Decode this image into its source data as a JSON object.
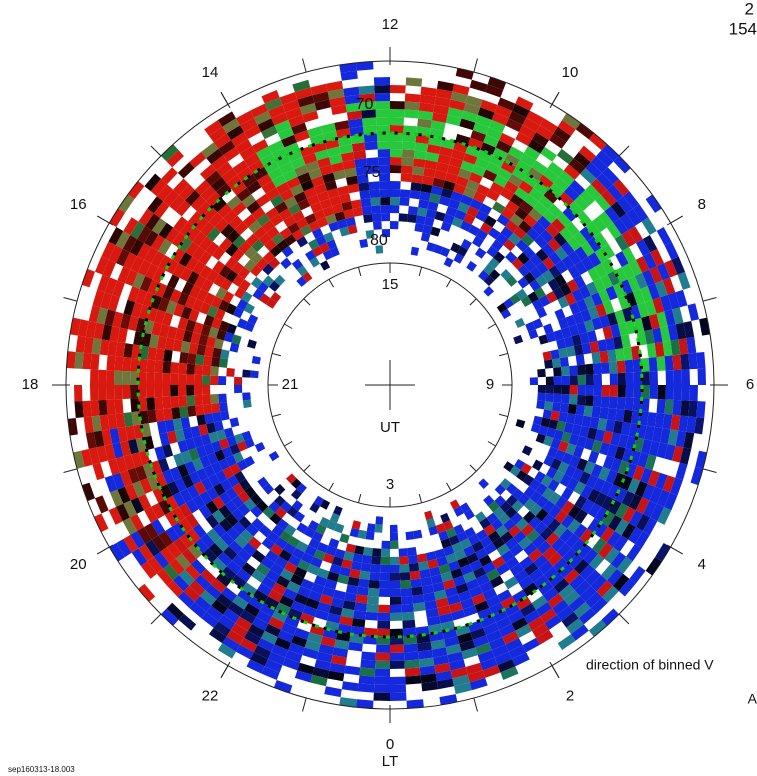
{
  "chart_data": {
    "type": "polar-dial",
    "lt_label": "LT",
    "ut_label": "UT",
    "lt_ticks": [
      0,
      2,
      4,
      6,
      8,
      10,
      12,
      14,
      16,
      18,
      20,
      22
    ],
    "ut_ticks": [
      3,
      9,
      15,
      21
    ],
    "lat_ticks": [
      70,
      75,
      80
    ],
    "header_fragments": [
      "2",
      "154"
    ],
    "legend_fragments": [
      "direction of binned V",
      "A"
    ],
    "file_label": "sep160313-18.003"
  }
}
